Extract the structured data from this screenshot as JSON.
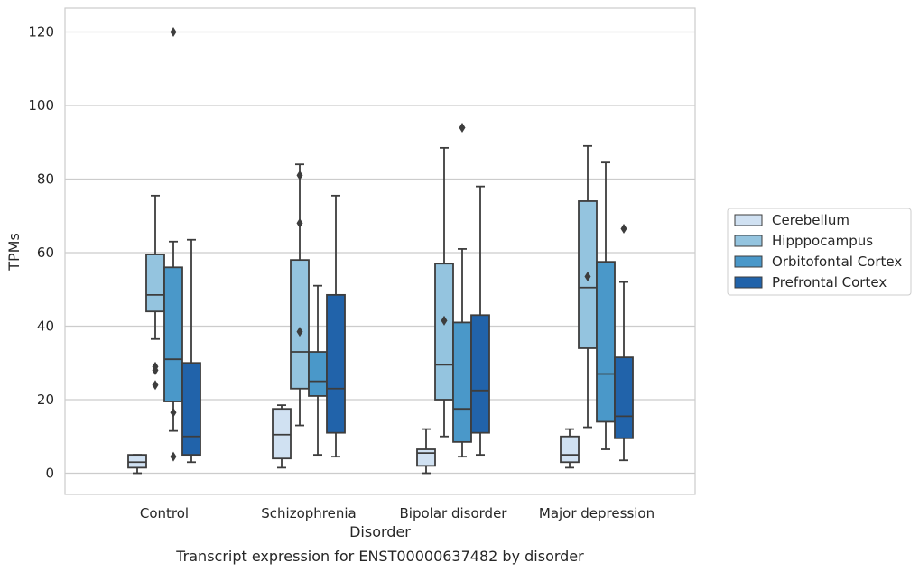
{
  "chart_data": {
    "type": "boxplot",
    "xlabel": "Disorder",
    "ylabel": "TPMs",
    "caption": "Transcript expression for ENST00000637482 by disorder",
    "ylim": [
      -6,
      126
    ],
    "yticks": [
      0,
      20,
      40,
      60,
      80,
      100,
      120
    ],
    "grid": "horizontal",
    "legend_position": "right",
    "categories": [
      "Control",
      "Schizophrenia",
      "Bipolar disorder",
      "Major depression"
    ],
    "series": [
      {
        "name": "Cerebellum",
        "color": "#d0e1f2",
        "boxes": [
          {
            "whislo": 0,
            "q1": 1.5,
            "med": 3,
            "q3": 5,
            "whishi": 5,
            "fliers": []
          },
          {
            "whislo": 1.5,
            "q1": 4,
            "med": 10.5,
            "q3": 17.5,
            "whishi": 18.5,
            "fliers": []
          },
          {
            "whislo": 0,
            "q1": 2,
            "med": 5.5,
            "q3": 6.5,
            "whishi": 12,
            "fliers": []
          },
          {
            "whislo": 1.5,
            "q1": 3,
            "med": 5,
            "q3": 10,
            "whishi": 12,
            "fliers": []
          }
        ]
      },
      {
        "name": "Hipppocampus",
        "color": "#94c4df",
        "boxes": [
          {
            "whislo": 36.5,
            "q1": 44,
            "med": 48.5,
            "q3": 59.5,
            "whishi": 75.5,
            "fliers": [
              29,
              28,
              24
            ]
          },
          {
            "whislo": 13,
            "q1": 23,
            "med": 33,
            "q3": 58,
            "whishi": 84,
            "fliers": [
              81,
              68,
              38.5
            ]
          },
          {
            "whislo": 10,
            "q1": 20,
            "med": 29.5,
            "q3": 57,
            "whishi": 88.5,
            "fliers": [
              41.5
            ]
          },
          {
            "whislo": 12.5,
            "q1": 34,
            "med": 50.5,
            "q3": 74,
            "whishi": 89,
            "fliers": [
              53.5
            ]
          }
        ]
      },
      {
        "name": "Orbitofontal Cortex",
        "color": "#4a98c9",
        "boxes": [
          {
            "whislo": 11.5,
            "q1": 19.5,
            "med": 31,
            "q3": 56,
            "whishi": 63,
            "fliers": [
              120,
              16.5,
              4.5
            ]
          },
          {
            "whislo": 5,
            "q1": 21,
            "med": 25,
            "q3": 33,
            "whishi": 51,
            "fliers": []
          },
          {
            "whislo": 4.5,
            "q1": 8.5,
            "med": 17.5,
            "q3": 41,
            "whishi": 61,
            "fliers": [
              94
            ]
          },
          {
            "whislo": 6.5,
            "q1": 14,
            "med": 27,
            "q3": 57.5,
            "whishi": 84.5,
            "fliers": []
          }
        ]
      },
      {
        "name": "Prefrontal Cortex",
        "color": "#2163aa",
        "boxes": [
          {
            "whislo": 3,
            "q1": 5,
            "med": 10,
            "q3": 30,
            "whishi": 63.5,
            "fliers": []
          },
          {
            "whislo": 4.5,
            "q1": 11,
            "med": 23,
            "q3": 48.5,
            "whishi": 75.5,
            "fliers": []
          },
          {
            "whislo": 5,
            "q1": 11,
            "med": 22.5,
            "q3": 43,
            "whishi": 78,
            "fliers": []
          },
          {
            "whislo": 3.5,
            "q1": 9.5,
            "med": 15.5,
            "q3": 31.5,
            "whishi": 52,
            "fliers": [
              66.5
            ]
          }
        ]
      }
    ]
  }
}
